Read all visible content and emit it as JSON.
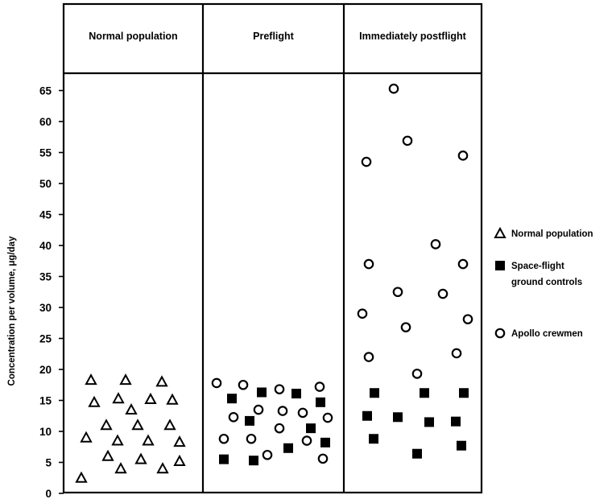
{
  "chart_data": {
    "type": "scatter",
    "ylabel": "Concentration per volume, μg/day",
    "yticks": [
      "0",
      "5",
      "10",
      "15",
      "20",
      "25",
      "30",
      "35",
      "40",
      "45",
      "50",
      "55",
      "60",
      "65"
    ],
    "ylim": [
      0,
      68
    ],
    "grid": false,
    "legend_position": "right",
    "panels": [
      "Normal population",
      "Preflight",
      "Immediately postflight"
    ],
    "series": [
      {
        "name": "Normal population",
        "marker": "triangle",
        "points": [
          {
            "panel": "Normal population",
            "y": 2.5
          },
          {
            "panel": "Normal population",
            "y": 9
          },
          {
            "panel": "Normal population",
            "y": 18.3
          },
          {
            "panel": "Normal population",
            "y": 14.7
          },
          {
            "panel": "Normal population",
            "y": 11
          },
          {
            "panel": "Normal population",
            "y": 6
          },
          {
            "panel": "Normal population",
            "y": 15.3
          },
          {
            "panel": "Normal population",
            "y": 8.5
          },
          {
            "panel": "Normal population",
            "y": 4
          },
          {
            "panel": "Normal population",
            "y": 18.3
          },
          {
            "panel": "Normal population",
            "y": 13.5
          },
          {
            "panel": "Normal population",
            "y": 11
          },
          {
            "panel": "Normal population",
            "y": 5.5
          },
          {
            "panel": "Normal population",
            "y": 15.2
          },
          {
            "panel": "Normal population",
            "y": 8.5
          },
          {
            "panel": "Normal population",
            "y": 18
          },
          {
            "panel": "Normal population",
            "y": 4
          },
          {
            "panel": "Normal population",
            "y": 15.1
          },
          {
            "panel": "Normal population",
            "y": 11
          },
          {
            "panel": "Normal population",
            "y": 8.3
          },
          {
            "panel": "Normal population",
            "y": 5.2
          }
        ]
      },
      {
        "name": "Space-flight ground controls",
        "marker": "square",
        "points": [
          {
            "panel": "Preflight",
            "y": 15.3
          },
          {
            "panel": "Preflight",
            "y": 5.5
          },
          {
            "panel": "Preflight",
            "y": 11.7
          },
          {
            "panel": "Preflight",
            "y": 5.3
          },
          {
            "panel": "Preflight",
            "y": 16.3
          },
          {
            "panel": "Preflight",
            "y": 7.3
          },
          {
            "panel": "Preflight",
            "y": 16.1
          },
          {
            "panel": "Preflight",
            "y": 10.5
          },
          {
            "panel": "Preflight",
            "y": 14.7
          },
          {
            "panel": "Preflight",
            "y": 8.2
          },
          {
            "panel": "Immediately postflight",
            "y": 16.2
          },
          {
            "panel": "Immediately postflight",
            "y": 12.5
          },
          {
            "panel": "Immediately postflight",
            "y": 8.8
          },
          {
            "panel": "Immediately postflight",
            "y": 12.3
          },
          {
            "panel": "Immediately postflight",
            "y": 6.4
          },
          {
            "panel": "Immediately postflight",
            "y": 16.2
          },
          {
            "panel": "Immediately postflight",
            "y": 11.5
          },
          {
            "panel": "Immediately postflight",
            "y": 11.6
          },
          {
            "panel": "Immediately postflight",
            "y": 7.7
          },
          {
            "panel": "Immediately postflight",
            "y": 16.2
          }
        ]
      },
      {
        "name": "Apollo crewmen",
        "marker": "circle",
        "points": [
          {
            "panel": "Preflight",
            "y": 17.8
          },
          {
            "panel": "Preflight",
            "y": 12.3
          },
          {
            "panel": "Preflight",
            "y": 8.8
          },
          {
            "panel": "Preflight",
            "y": 17.5
          },
          {
            "panel": "Preflight",
            "y": 8.8
          },
          {
            "panel": "Preflight",
            "y": 13.5
          },
          {
            "panel": "Preflight",
            "y": 6.2
          },
          {
            "panel": "Preflight",
            "y": 16.8
          },
          {
            "panel": "Preflight",
            "y": 13.3
          },
          {
            "panel": "Preflight",
            "y": 10.5
          },
          {
            "panel": "Preflight",
            "y": 13
          },
          {
            "panel": "Preflight",
            "y": 8.5
          },
          {
            "panel": "Preflight",
            "y": 17.2
          },
          {
            "panel": "Preflight",
            "y": 5.6
          },
          {
            "panel": "Preflight",
            "y": 12.2
          },
          {
            "panel": "Immediately postflight",
            "y": 53.5
          },
          {
            "panel": "Immediately postflight",
            "y": 37
          },
          {
            "panel": "Immediately postflight",
            "y": 29
          },
          {
            "panel": "Immediately postflight",
            "y": 22
          },
          {
            "panel": "Immediately postflight",
            "y": 65.3
          },
          {
            "panel": "Immediately postflight",
            "y": 32.5
          },
          {
            "panel": "Immediately postflight",
            "y": 56.9
          },
          {
            "panel": "Immediately postflight",
            "y": 26.8
          },
          {
            "panel": "Immediately postflight",
            "y": 19.3
          },
          {
            "panel": "Immediately postflight",
            "y": 40.2
          },
          {
            "panel": "Immediately postflight",
            "y": 32.2
          },
          {
            "panel": "Immediately postflight",
            "y": 22.6
          },
          {
            "panel": "Immediately postflight",
            "y": 54.5
          },
          {
            "panel": "Immediately postflight",
            "y": 37
          },
          {
            "panel": "Immediately postflight",
            "y": 28.1
          }
        ]
      }
    ]
  }
}
